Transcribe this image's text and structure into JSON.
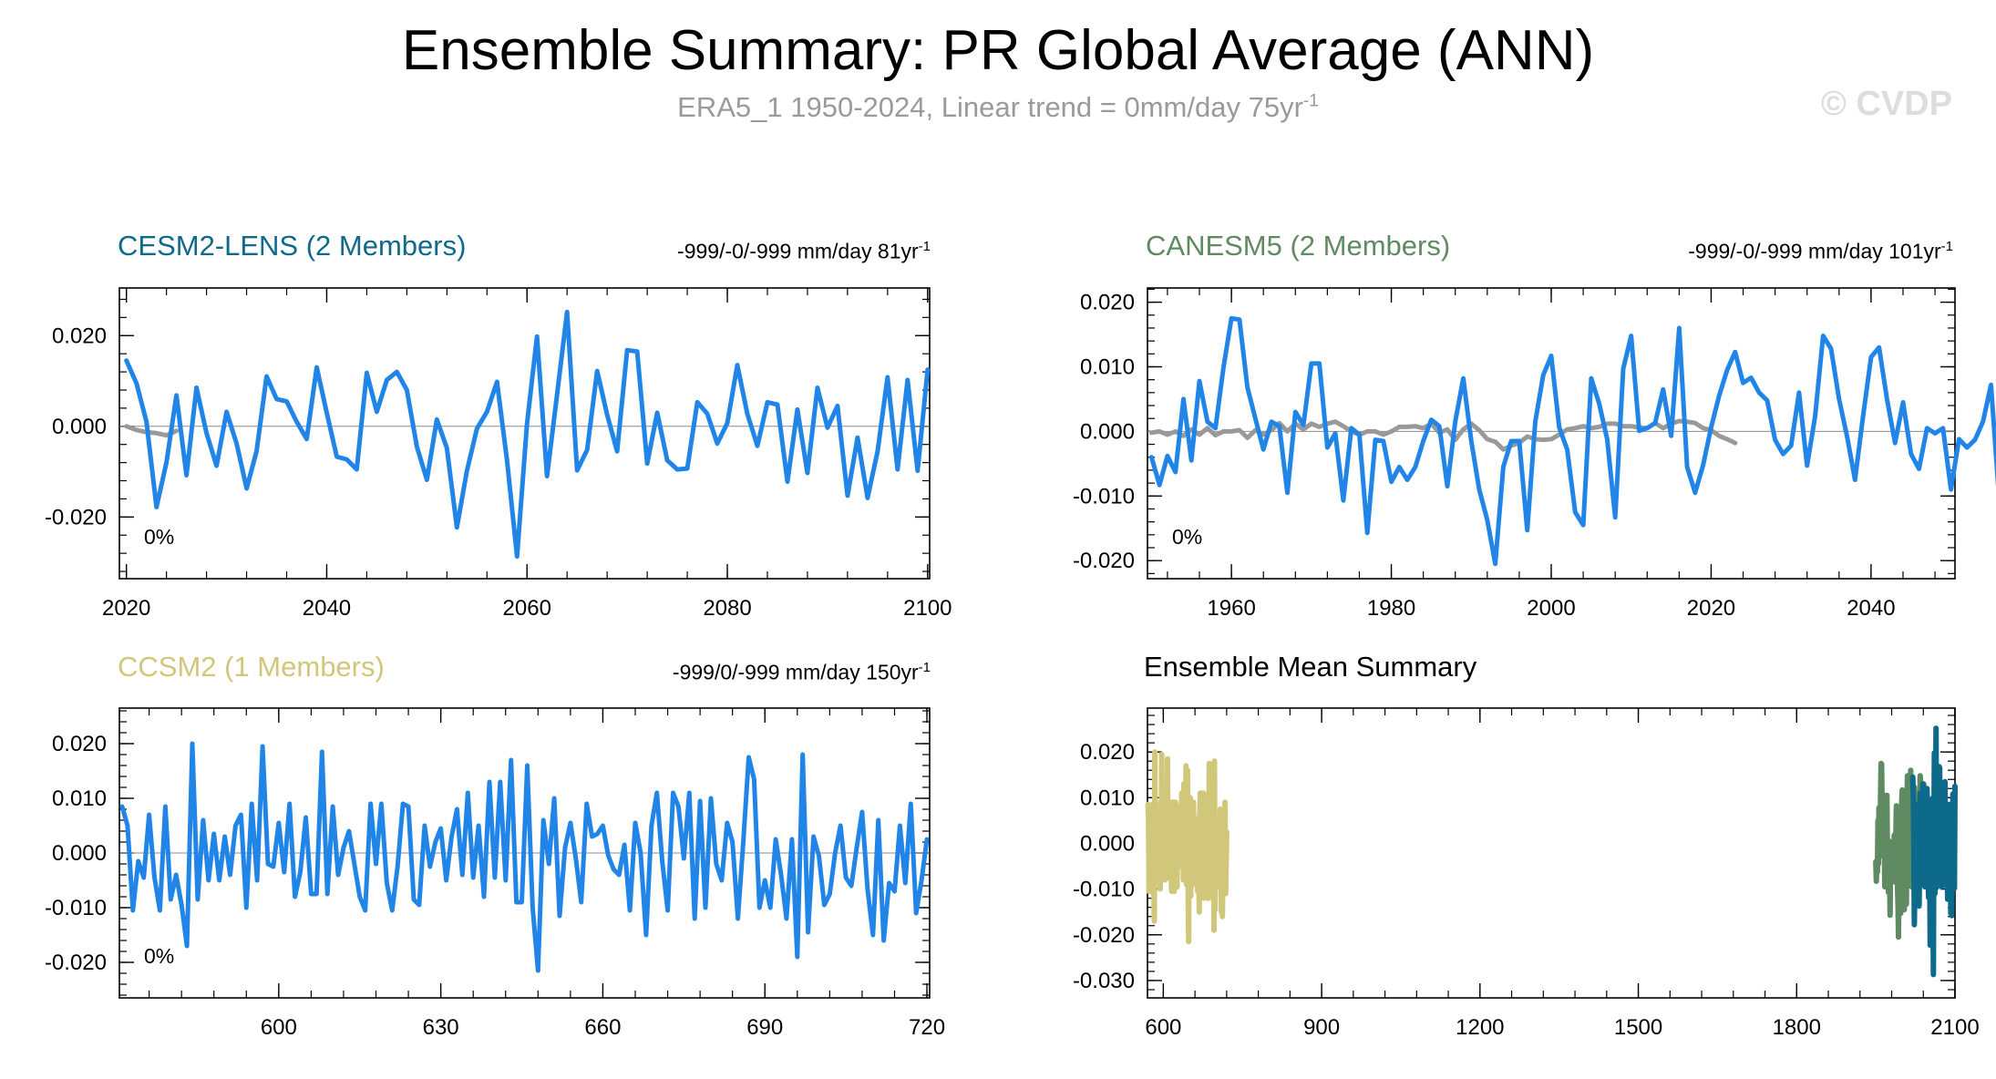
{
  "figure": {
    "title": "Ensemble Summary: PR Global Average (ANN)",
    "subtitle": "ERA5_1 1950-2024, Linear trend = 0mm/day 75yr",
    "subtitle_exp": "-1",
    "watermark": "© CVDP"
  },
  "colors": {
    "cesm2": "#0e6a8a",
    "canesm5": "#5f8a62",
    "ccsm2": "#d0c77a",
    "line": "#2185e8",
    "obs": "#999999",
    "mean_title": "#000000"
  },
  "chart_data": [
    {
      "id": "cesm2",
      "type": "line",
      "title": "CESM2-LENS (2 Members)",
      "stat_text": "-999/-0/-999 mm/day 81yr",
      "stat_exp": "-1",
      "pct_label": "0%",
      "xlim": [
        2019.3,
        2100.2
      ],
      "ylim": [
        -0.0336,
        0.0305
      ],
      "yticks": [
        -0.02,
        0.0,
        0.02
      ],
      "ytick_labels": [
        "-0.020",
        "0.000",
        "0.020"
      ],
      "xticks": [
        2020,
        2040,
        2060,
        2080,
        2100
      ],
      "xtick_labels": [
        "2020",
        "2040",
        "2060",
        "2080",
        "2100"
      ],
      "x_start": 2020,
      "series": [
        {
          "name": "ensemble-mean",
          "values": [
            0.0145,
            0.0095,
            0.001,
            -0.0178,
            -0.008,
            0.0068,
            -0.0108,
            0.0085,
            -0.0015,
            -0.0087,
            0.0032,
            -0.0038,
            -0.0137,
            -0.0055,
            0.011,
            0.006,
            0.0055,
            0.001,
            -0.0028,
            0.013,
            0.003,
            -0.0067,
            -0.0073,
            -0.0095,
            0.0118,
            0.0032,
            0.0102,
            0.012,
            0.008,
            -0.0045,
            -0.0118,
            0.0015,
            -0.0048,
            -0.0223,
            -0.0098,
            -0.0005,
            0.0032,
            0.0098,
            -0.0075,
            -0.0287,
            0.0005,
            0.0198,
            -0.011,
            0.007,
            0.0252,
            -0.0097,
            -0.0052,
            0.0122,
            0.0025,
            -0.0055,
            0.0168,
            0.0165,
            -0.0082,
            0.003,
            -0.0075,
            -0.0095,
            -0.0093,
            0.0053,
            0.0028,
            -0.0038,
            0.0007,
            0.0135,
            0.0027,
            -0.0043,
            0.0053,
            0.0048,
            -0.0122,
            0.0037,
            -0.0103,
            0.0085,
            -0.0003,
            0.0045,
            -0.0153,
            -0.0025,
            -0.0158,
            -0.0055,
            0.0108,
            -0.0095,
            0.0102,
            -0.0098,
            0.0125
          ]
        },
        {
          "name": "observations",
          "values": [
            0.0,
            -0.0008,
            -0.0013,
            -0.0015,
            -0.002,
            -0.001
          ]
        }
      ]
    },
    {
      "id": "canesm5",
      "type": "line",
      "title": "CANESM5 (2 Members)",
      "stat_text": "-999/-0/-999 mm/day 101yr",
      "stat_exp": "-1",
      "pct_label": "0%",
      "xlim": [
        1949.5,
        2050.5
      ],
      "ylim": [
        -0.0228,
        0.0222
      ],
      "yticks": [
        -0.02,
        -0.01,
        0.0,
        0.01,
        0.02
      ],
      "ytick_labels": [
        "-0.020",
        "-0.010",
        "0.000",
        "0.010",
        "0.020"
      ],
      "xticks": [
        1960,
        1980,
        2000,
        2020,
        2040
      ],
      "xtick_labels": [
        "1960",
        "1980",
        "2000",
        "2020",
        "2040"
      ],
      "x_start": 1950,
      "series": [
        {
          "name": "ensemble-mean",
          "values": [
            -0.004,
            -0.0083,
            -0.0038,
            -0.0063,
            0.005,
            -0.0045,
            0.0078,
            0.0015,
            0.0005,
            0.0098,
            0.0175,
            0.0173,
            0.0068,
            0.002,
            -0.0028,
            0.0015,
            0.0008,
            -0.0095,
            0.003,
            0.001,
            0.0105,
            0.0105,
            -0.0025,
            -0.0003,
            -0.0107,
            0.0005,
            -0.0005,
            -0.0157,
            -0.0013,
            -0.0015,
            -0.0078,
            -0.0055,
            -0.0075,
            -0.0055,
            -0.0015,
            0.0018,
            0.0008,
            -0.0085,
            0.0015,
            0.0082,
            -0.0015,
            -0.009,
            -0.0137,
            -0.0205,
            -0.0055,
            -0.0015,
            -0.0015,
            -0.0153,
            0.0015,
            0.0087,
            0.0117,
            0.0006,
            -0.0028,
            -0.0125,
            -0.0145,
            0.0082,
            0.0043,
            -0.0012,
            -0.0133,
            0.0097,
            0.0148,
            0.0001,
            0.0005,
            0.0013,
            0.0065,
            -0.0007,
            0.016,
            -0.0055,
            -0.0095,
            -0.0052,
            0.0006,
            0.0055,
            0.0095,
            0.0123,
            0.0075,
            0.0083,
            0.006,
            0.0048,
            -0.0013,
            -0.0035,
            -0.0022,
            0.006,
            -0.0053,
            0.0023,
            0.0148,
            0.0128,
            0.005,
            -0.0008,
            -0.0075,
            0.0023,
            0.0115,
            0.013,
            0.005,
            -0.0018,
            0.0045,
            -0.0035,
            -0.0058,
            0.0005,
            -0.0003,
            0.0005,
            -0.009,
            -0.0012,
            -0.0025,
            -0.0013,
            0.0015,
            0.0072,
            -0.01,
            -0.0168,
            -0.0193
          ]
        },
        {
          "name": "observations",
          "values": [
            -0.0002,
            0.0,
            -0.0005,
            0.0,
            -0.0007,
            0.0003,
            -0.0005,
            0.0005,
            -0.0006,
            0.0,
            0.0,
            0.0002,
            -0.001,
            0.0002,
            -0.0005,
            0.0002,
            0.0013,
            0.0,
            0.0012,
            0.0003,
            0.0012,
            0.0007,
            0.0012,
            0.0015,
            0.0008,
            0.0,
            -0.0005,
            0.0,
            0.0,
            -0.0005,
            0.0,
            0.0007,
            0.0007,
            0.0008,
            0.0005,
            0.0012,
            -0.0002,
            0.0003,
            -0.0013,
            0.0003,
            0.0012,
            0.0002,
            -0.0012,
            -0.0016,
            -0.0028,
            -0.0022,
            -0.0018,
            -0.0008,
            -0.0012,
            -0.0013,
            -0.0012,
            -0.0005,
            0.0003,
            0.0005,
            0.0008,
            0.0005,
            0.0007,
            0.0012,
            0.0012,
            0.0008,
            0.0008,
            0.0006,
            0.0005,
            0.0013,
            0.0005,
            0.0012,
            0.0016,
            0.0015,
            0.0013,
            0.0005,
            0.0002,
            -0.0007,
            -0.0012,
            -0.0018
          ]
        }
      ]
    },
    {
      "id": "ccsm2",
      "type": "line",
      "title": "CCSM2 (1 Members)",
      "stat_text": "-999/0/-999 mm/day 150yr",
      "stat_exp": "-1",
      "pct_label": "0%",
      "xlim": [
        570.5,
        720.5
      ],
      "ylim": [
        -0.0265,
        0.0265
      ],
      "yticks": [
        -0.02,
        -0.01,
        0.0,
        0.01,
        0.02
      ],
      "ytick_labels": [
        "-0.020",
        "-0.010",
        "0.000",
        "0.010",
        "0.020"
      ],
      "xticks": [
        600,
        630,
        660,
        690,
        720
      ],
      "xtick_labels": [
        "600",
        "630",
        "660",
        "690",
        "720"
      ],
      "x_start": 571,
      "series": [
        {
          "name": "ensemble-mean",
          "values": [
            0.0085,
            0.005,
            -0.0105,
            -0.0015,
            -0.0045,
            0.007,
            -0.0045,
            -0.0105,
            0.0085,
            -0.0085,
            -0.004,
            -0.0095,
            -0.017,
            0.02,
            -0.0085,
            0.006,
            -0.005,
            0.0035,
            -0.005,
            0.003,
            -0.004,
            0.005,
            0.007,
            -0.01,
            0.009,
            -0.005,
            0.0195,
            -0.002,
            -0.0025,
            0.0055,
            -0.0035,
            0.009,
            -0.008,
            -0.0035,
            0.0065,
            -0.0075,
            -0.0075,
            0.0185,
            -0.0075,
            0.0085,
            -0.004,
            0.001,
            0.004,
            -0.002,
            -0.008,
            -0.0105,
            0.009,
            -0.002,
            0.009,
            -0.0055,
            -0.0105,
            -0.0025,
            0.009,
            0.0085,
            -0.0085,
            -0.0095,
            0.005,
            -0.0025,
            0.002,
            0.0045,
            -0.005,
            0.003,
            0.008,
            -0.004,
            0.011,
            -0.0045,
            0.005,
            -0.008,
            0.013,
            -0.0045,
            0.013,
            -0.005,
            0.017,
            -0.009,
            -0.009,
            0.016,
            -0.01,
            -0.0215,
            0.006,
            -0.002,
            0.01,
            -0.0115,
            0.001,
            0.0055,
            -0.001,
            -0.009,
            0.009,
            0.003,
            0.0035,
            0.005,
            -0.0005,
            -0.003,
            -0.004,
            0.0015,
            -0.0105,
            0.0055,
            0.0,
            -0.015,
            0.005,
            0.011,
            -0.0015,
            -0.0105,
            0.011,
            0.0085,
            -0.001,
            0.011,
            -0.012,
            0.0095,
            -0.01,
            0.01,
            -0.002,
            -0.005,
            0.0055,
            0.002,
            -0.012,
            0.002,
            0.0175,
            0.0135,
            -0.01,
            -0.005,
            -0.01,
            0.0025,
            -0.004,
            -0.012,
            0.0025,
            -0.019,
            0.018,
            -0.0145,
            0.003,
            -0.0005,
            -0.0095,
            -0.0075,
            0.0,
            0.005,
            -0.0045,
            -0.006,
            0.001,
            0.0075,
            -0.0065,
            -0.015,
            0.006,
            -0.016,
            -0.0055,
            -0.007,
            0.005,
            -0.0055,
            0.009,
            -0.011,
            -0.005,
            0.0025
          ]
        }
      ]
    },
    {
      "id": "ensemble-mean-summary",
      "type": "line",
      "title": "Ensemble Mean Summary",
      "xlim": [
        570,
        2100
      ],
      "ylim": [
        -0.0338,
        0.0296
      ],
      "yticks": [
        -0.03,
        -0.02,
        -0.01,
        0.0,
        0.01,
        0.02
      ],
      "ytick_labels": [
        "-0.030",
        "-0.020",
        "-0.010",
        "0.000",
        "0.010",
        "0.020"
      ],
      "xticks": [
        600,
        900,
        1200,
        1500,
        1800,
        2100
      ],
      "xtick_labels": [
        "600",
        "900",
        "1200",
        "1500",
        "1800",
        "2100"
      ],
      "series": [
        {
          "name": "CCSM2",
          "ref": "ccsm2",
          "x_start": 571
        },
        {
          "name": "CANESM5",
          "ref": "canesm5",
          "x_start": 1950
        },
        {
          "name": "CESM2-LENS",
          "ref": "cesm2",
          "x_start": 2020
        }
      ]
    }
  ]
}
